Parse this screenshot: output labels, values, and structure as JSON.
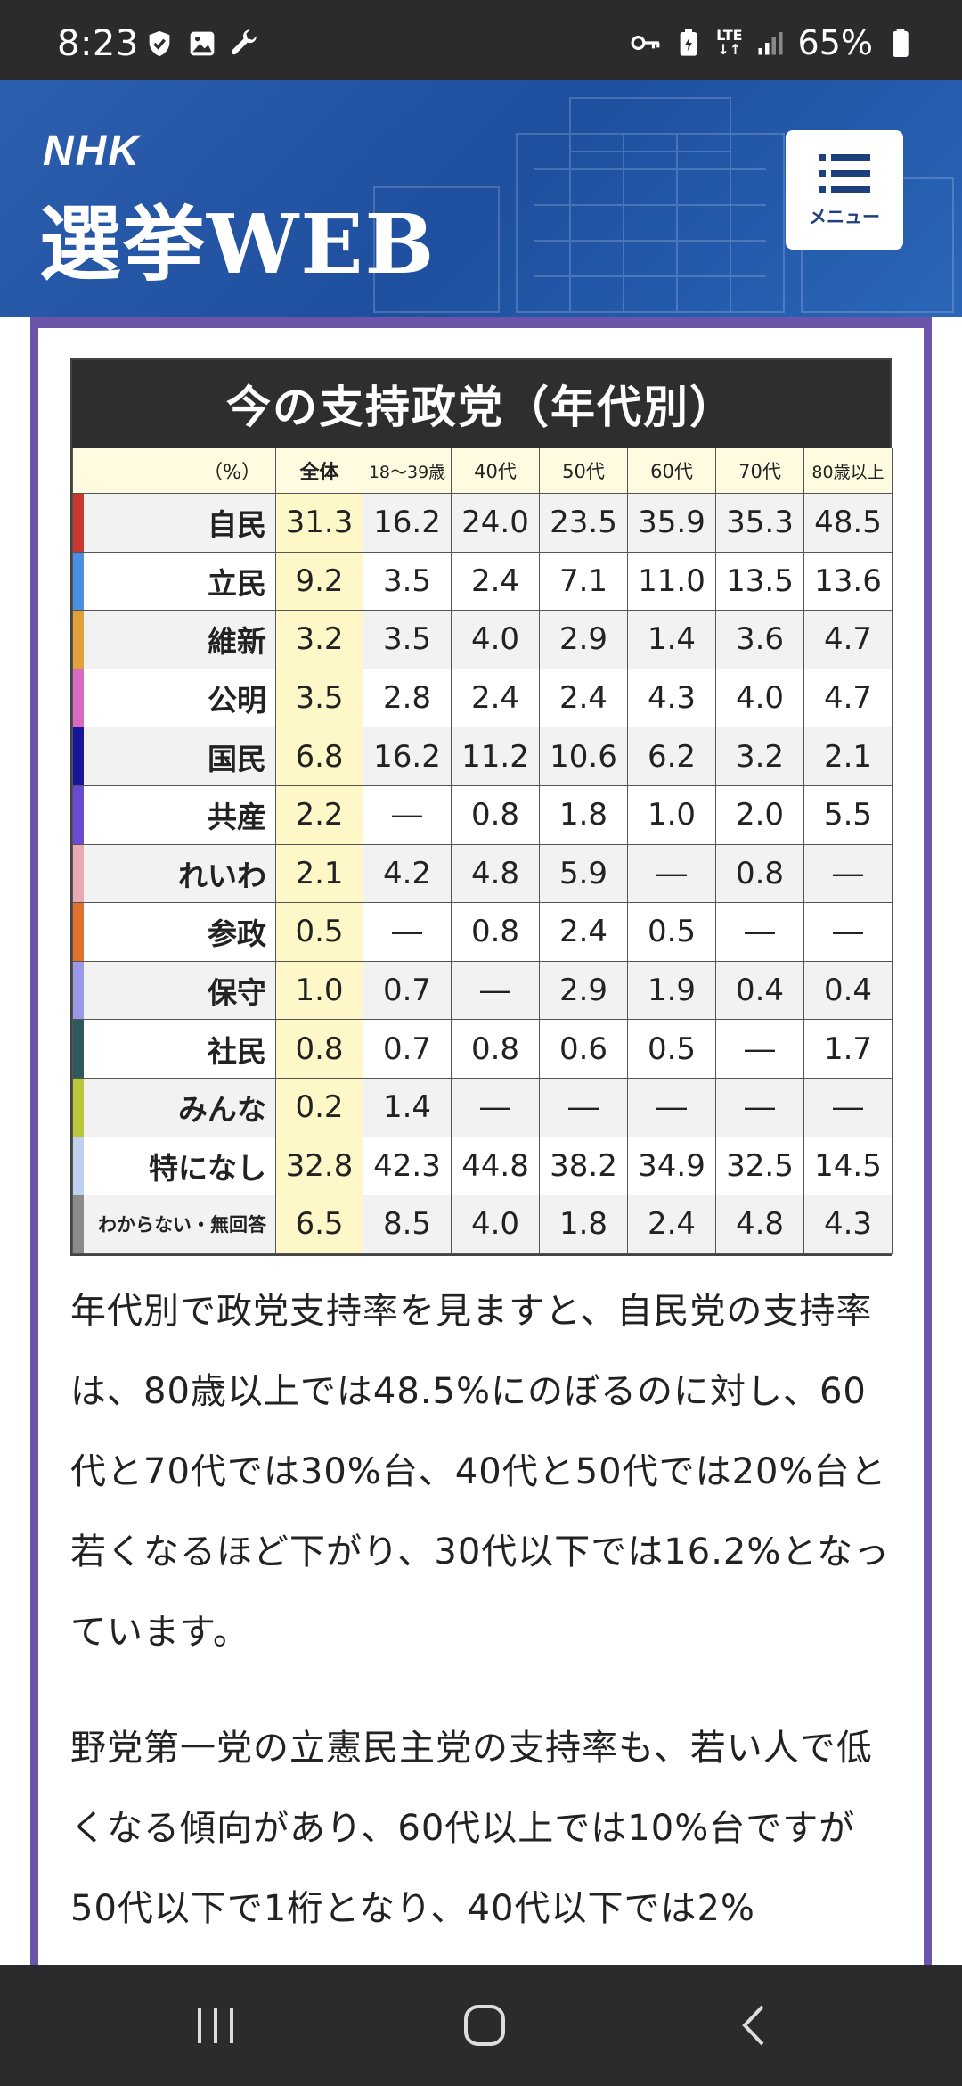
{
  "status_bar": {
    "time": "8:23",
    "lte": "LTE",
    "battery": "65%"
  },
  "header": {
    "logo": "NHK",
    "title": "選挙WEB",
    "menu_label": "メニュー"
  },
  "chart": {
    "title": "今の支持政党（年代別）",
    "columns": [
      "（%）",
      "全体",
      "18～39歳",
      "40代",
      "50代",
      "60代",
      "70代",
      "80歳以上"
    ],
    "rows": [
      {
        "party": "自民",
        "color": "#c8382e",
        "values": [
          "31.3",
          "16.2",
          "24.0",
          "23.5",
          "35.9",
          "35.3",
          "48.5"
        ]
      },
      {
        "party": "立民",
        "color": "#4a8fe0",
        "values": [
          "9.2",
          "3.5",
          "2.4",
          "7.1",
          "11.0",
          "13.5",
          "13.6"
        ]
      },
      {
        "party": "維新",
        "color": "#e0a03a",
        "values": [
          "3.2",
          "3.5",
          "4.0",
          "2.9",
          "1.4",
          "3.6",
          "4.7"
        ]
      },
      {
        "party": "公明",
        "color": "#d96ac0",
        "values": [
          "3.5",
          "2.8",
          "2.4",
          "2.4",
          "4.3",
          "4.0",
          "4.7"
        ]
      },
      {
        "party": "国民",
        "color": "#17169a",
        "values": [
          "6.8",
          "16.2",
          "11.2",
          "10.6",
          "6.2",
          "3.2",
          "2.1"
        ]
      },
      {
        "party": "共産",
        "color": "#6a4ad0",
        "values": [
          "2.2",
          "―",
          "0.8",
          "1.8",
          "1.0",
          "2.0",
          "5.5"
        ]
      },
      {
        "party": "れいわ",
        "color": "#e8a8b6",
        "values": [
          "2.1",
          "4.2",
          "4.8",
          "5.9",
          "―",
          "0.8",
          "―"
        ]
      },
      {
        "party": "参政",
        "color": "#e0702e",
        "values": [
          "0.5",
          "―",
          "0.8",
          "2.4",
          "0.5",
          "―",
          "―"
        ]
      },
      {
        "party": "保守",
        "color": "#9c98e8",
        "values": [
          "1.0",
          "0.7",
          "―",
          "2.9",
          "1.9",
          "0.4",
          "0.4"
        ]
      },
      {
        "party": "社民",
        "color": "#2c5a5a",
        "values": [
          "0.8",
          "0.7",
          "0.8",
          "0.6",
          "0.5",
          "―",
          "1.7"
        ]
      },
      {
        "party": "みんな",
        "color": "#b8c83a",
        "values": [
          "0.2",
          "1.4",
          "―",
          "―",
          "―",
          "―",
          "―"
        ]
      },
      {
        "party": "特になし",
        "color": "#c0d0f0",
        "values": [
          "32.8",
          "42.3",
          "44.8",
          "38.2",
          "34.9",
          "32.5",
          "14.5"
        ]
      },
      {
        "party": "わからない・無回答",
        "color": "#8a8a8a",
        "values": [
          "6.5",
          "8.5",
          "4.0",
          "1.8",
          "2.4",
          "4.8",
          "4.3"
        ]
      }
    ]
  },
  "article": {
    "paragraphs": [
      "年代別で政党支持率を見ますと、自民党の支持率は、80歳以上では48.5%にのぼるのに対し、60代と70代では30%台、40代と50代では20%台と若くなるほど下がり、30代以下では16.2%となっています。",
      "野党第一党の立憲民主党の支持率も、若い人で低くなる傾向があり、60代以上では10%台ですが50代以下で1桁となり、40代以下では2%"
    ]
  }
}
